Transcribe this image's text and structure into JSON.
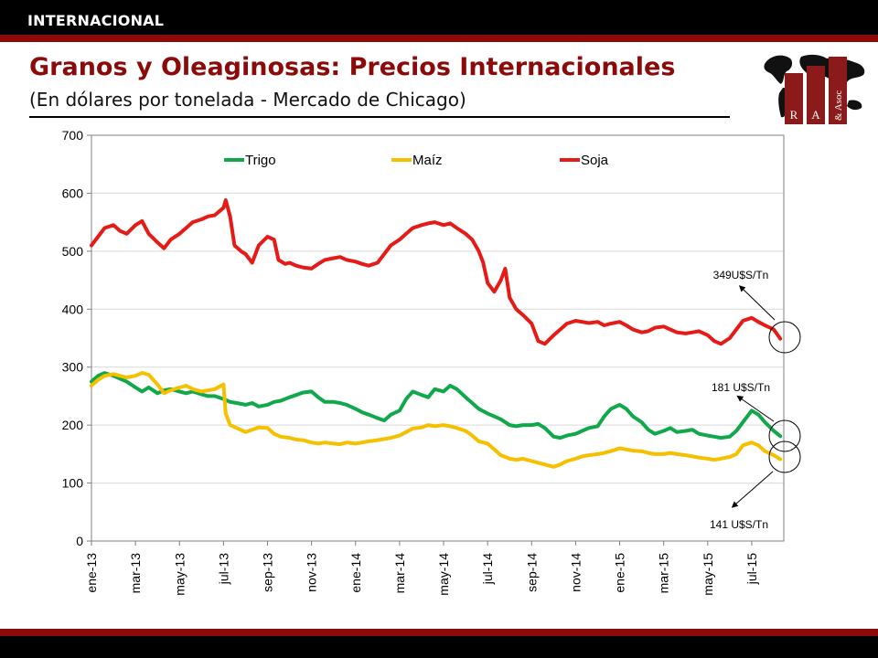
{
  "header": {
    "section_label": "INTERNACIONAL"
  },
  "page": {
    "title": "Granos y Oleaginosas: Precios Internacionales",
    "subtitle": "(En dólares por tonelada - Mercado de Chicago)"
  },
  "logo": {
    "letters": [
      "R",
      "A",
      "& Asoc"
    ],
    "colors": {
      "bar": "#8b1a1a",
      "map": "#111111"
    }
  },
  "colors": {
    "Trigo": "#11a84b",
    "Maíz": "#f5c000",
    "Soja": "#e41b17",
    "band": "#8b0b0b"
  },
  "chart_data": {
    "type": "line",
    "ylim": [
      0,
      700
    ],
    "yticks": [
      0,
      100,
      200,
      300,
      400,
      500,
      600,
      700
    ],
    "xlim": [
      0,
      31.3
    ],
    "x_unit": "months from ene-13",
    "xticks": [
      {
        "label": "ene-13",
        "x": 0
      },
      {
        "label": "mar-13",
        "x": 2
      },
      {
        "label": "may-13",
        "x": 4
      },
      {
        "label": "jul-13",
        "x": 6
      },
      {
        "label": "sep-13",
        "x": 8
      },
      {
        "label": "nov-13",
        "x": 10
      },
      {
        "label": "ene-14",
        "x": 12
      },
      {
        "label": "mar-14",
        "x": 14
      },
      {
        "label": "may-14",
        "x": 16
      },
      {
        "label": "jul-14",
        "x": 18
      },
      {
        "label": "sep-14",
        "x": 20
      },
      {
        "label": "nov-14",
        "x": 22
      },
      {
        "label": "ene-15",
        "x": 24
      },
      {
        "label": "mar-15",
        "x": 26
      },
      {
        "label": "may-15",
        "x": 28
      },
      {
        "label": "jul-15",
        "x": 30
      }
    ],
    "grid": "horizontal",
    "legend_position": "top",
    "series": [
      {
        "name": "Trigo",
        "points": [
          [
            0,
            275
          ],
          [
            0.3,
            285
          ],
          [
            0.6,
            290
          ],
          [
            1,
            285
          ],
          [
            1.3,
            280
          ],
          [
            1.6,
            275
          ],
          [
            2,
            265
          ],
          [
            2.3,
            258
          ],
          [
            2.6,
            265
          ],
          [
            3,
            255
          ],
          [
            3.3,
            260
          ],
          [
            3.6,
            262
          ],
          [
            4,
            258
          ],
          [
            4.3,
            255
          ],
          [
            4.6,
            258
          ],
          [
            5,
            253
          ],
          [
            5.3,
            250
          ],
          [
            5.6,
            250
          ],
          [
            6,
            245
          ],
          [
            6.3,
            240
          ],
          [
            6.6,
            238
          ],
          [
            7,
            235
          ],
          [
            7.3,
            238
          ],
          [
            7.6,
            232
          ],
          [
            8,
            235
          ],
          [
            8.3,
            240
          ],
          [
            8.6,
            242
          ],
          [
            9,
            248
          ],
          [
            9.3,
            252
          ],
          [
            9.6,
            256
          ],
          [
            10,
            258
          ],
          [
            10.3,
            248
          ],
          [
            10.6,
            240
          ],
          [
            11,
            240
          ],
          [
            11.3,
            238
          ],
          [
            11.6,
            235
          ],
          [
            12,
            228
          ],
          [
            12.3,
            222
          ],
          [
            12.6,
            218
          ],
          [
            13,
            212
          ],
          [
            13.3,
            208
          ],
          [
            13.6,
            218
          ],
          [
            14,
            225
          ],
          [
            14.3,
            245
          ],
          [
            14.6,
            258
          ],
          [
            15,
            252
          ],
          [
            15.3,
            248
          ],
          [
            15.6,
            262
          ],
          [
            16,
            258
          ],
          [
            16.3,
            268
          ],
          [
            16.6,
            262
          ],
          [
            17,
            248
          ],
          [
            17.3,
            238
          ],
          [
            17.6,
            228
          ],
          [
            18,
            220
          ],
          [
            18.3,
            215
          ],
          [
            18.6,
            210
          ],
          [
            19,
            200
          ],
          [
            19.3,
            198
          ],
          [
            19.6,
            200
          ],
          [
            20,
            200
          ],
          [
            20.3,
            202
          ],
          [
            20.6,
            195
          ],
          [
            21,
            180
          ],
          [
            21.3,
            178
          ],
          [
            21.6,
            182
          ],
          [
            22,
            185
          ],
          [
            22.3,
            190
          ],
          [
            22.6,
            195
          ],
          [
            23,
            198
          ],
          [
            23.3,
            215
          ],
          [
            23.6,
            228
          ],
          [
            24,
            235
          ],
          [
            24.3,
            228
          ],
          [
            24.6,
            215
          ],
          [
            25,
            205
          ],
          [
            25.3,
            192
          ],
          [
            25.6,
            185
          ],
          [
            26,
            190
          ],
          [
            26.3,
            195
          ],
          [
            26.6,
            188
          ],
          [
            27,
            190
          ],
          [
            27.3,
            192
          ],
          [
            27.6,
            185
          ],
          [
            28,
            182
          ],
          [
            28.3,
            180
          ],
          [
            28.6,
            178
          ],
          [
            29,
            180
          ],
          [
            29.3,
            190
          ],
          [
            29.6,
            205
          ],
          [
            30,
            225
          ],
          [
            30.3,
            218
          ],
          [
            30.6,
            205
          ],
          [
            31,
            190
          ],
          [
            31.3,
            181
          ]
        ]
      },
      {
        "name": "Maíz",
        "points": [
          [
            0,
            268
          ],
          [
            0.3,
            278
          ],
          [
            0.6,
            285
          ],
          [
            1,
            288
          ],
          [
            1.3,
            285
          ],
          [
            1.6,
            282
          ],
          [
            2,
            285
          ],
          [
            2.3,
            290
          ],
          [
            2.6,
            287
          ],
          [
            3,
            270
          ],
          [
            3.3,
            255
          ],
          [
            3.6,
            260
          ],
          [
            4,
            265
          ],
          [
            4.3,
            268
          ],
          [
            4.6,
            262
          ],
          [
            5,
            258
          ],
          [
            5.3,
            260
          ],
          [
            5.6,
            262
          ],
          [
            6,
            270
          ],
          [
            6.1,
            220
          ],
          [
            6.3,
            200
          ],
          [
            6.6,
            195
          ],
          [
            7,
            188
          ],
          [
            7.3,
            192
          ],
          [
            7.6,
            196
          ],
          [
            8,
            195
          ],
          [
            8.3,
            185
          ],
          [
            8.6,
            180
          ],
          [
            9,
            178
          ],
          [
            9.3,
            175
          ],
          [
            9.6,
            174
          ],
          [
            10,
            170
          ],
          [
            10.3,
            168
          ],
          [
            10.6,
            170
          ],
          [
            11,
            168
          ],
          [
            11.3,
            167
          ],
          [
            11.6,
            170
          ],
          [
            12,
            168
          ],
          [
            12.3,
            170
          ],
          [
            12.6,
            172
          ],
          [
            13,
            174
          ],
          [
            13.3,
            176
          ],
          [
            13.6,
            178
          ],
          [
            14,
            182
          ],
          [
            14.3,
            188
          ],
          [
            14.6,
            194
          ],
          [
            15,
            196
          ],
          [
            15.3,
            200
          ],
          [
            15.6,
            198
          ],
          [
            16,
            200
          ],
          [
            16.3,
            198
          ],
          [
            16.6,
            195
          ],
          [
            17,
            190
          ],
          [
            17.3,
            182
          ],
          [
            17.6,
            172
          ],
          [
            18,
            168
          ],
          [
            18.3,
            158
          ],
          [
            18.6,
            148
          ],
          [
            19,
            142
          ],
          [
            19.3,
            140
          ],
          [
            19.6,
            142
          ],
          [
            20,
            138
          ],
          [
            20.3,
            135
          ],
          [
            20.6,
            132
          ],
          [
            21,
            128
          ],
          [
            21.3,
            132
          ],
          [
            21.6,
            138
          ],
          [
            22,
            142
          ],
          [
            22.3,
            146
          ],
          [
            22.6,
            148
          ],
          [
            23,
            150
          ],
          [
            23.3,
            152
          ],
          [
            23.6,
            155
          ],
          [
            24,
            160
          ],
          [
            24.3,
            158
          ],
          [
            24.6,
            156
          ],
          [
            25,
            155
          ],
          [
            25.3,
            152
          ],
          [
            25.6,
            150
          ],
          [
            26,
            150
          ],
          [
            26.3,
            152
          ],
          [
            26.6,
            150
          ],
          [
            27,
            148
          ],
          [
            27.3,
            146
          ],
          [
            27.6,
            144
          ],
          [
            28,
            142
          ],
          [
            28.3,
            140
          ],
          [
            28.6,
            142
          ],
          [
            29,
            145
          ],
          [
            29.3,
            150
          ],
          [
            29.6,
            165
          ],
          [
            30,
            170
          ],
          [
            30.3,
            165
          ],
          [
            30.6,
            155
          ],
          [
            31,
            148
          ],
          [
            31.3,
            141
          ]
        ]
      },
      {
        "name": "Soja",
        "points": [
          [
            0,
            510
          ],
          [
            0.3,
            525
          ],
          [
            0.6,
            540
          ],
          [
            1,
            545
          ],
          [
            1.3,
            535
          ],
          [
            1.6,
            530
          ],
          [
            2,
            545
          ],
          [
            2.3,
            552
          ],
          [
            2.6,
            530
          ],
          [
            3,
            515
          ],
          [
            3.3,
            505
          ],
          [
            3.6,
            520
          ],
          [
            4,
            530
          ],
          [
            4.3,
            540
          ],
          [
            4.6,
            550
          ],
          [
            5,
            555
          ],
          [
            5.3,
            560
          ],
          [
            5.6,
            562
          ],
          [
            6,
            575
          ],
          [
            6.1,
            588
          ],
          [
            6.3,
            560
          ],
          [
            6.5,
            510
          ],
          [
            6.8,
            500
          ],
          [
            7,
            495
          ],
          [
            7.3,
            480
          ],
          [
            7.6,
            510
          ],
          [
            8,
            525
          ],
          [
            8.3,
            520
          ],
          [
            8.5,
            485
          ],
          [
            8.8,
            478
          ],
          [
            9,
            480
          ],
          [
            9.3,
            475
          ],
          [
            9.6,
            472
          ],
          [
            10,
            470
          ],
          [
            10.3,
            478
          ],
          [
            10.6,
            485
          ],
          [
            11,
            488
          ],
          [
            11.3,
            490
          ],
          [
            11.6,
            485
          ],
          [
            12,
            482
          ],
          [
            12.3,
            478
          ],
          [
            12.6,
            475
          ],
          [
            13,
            480
          ],
          [
            13.3,
            495
          ],
          [
            13.6,
            510
          ],
          [
            14,
            520
          ],
          [
            14.3,
            530
          ],
          [
            14.6,
            540
          ],
          [
            15,
            545
          ],
          [
            15.3,
            548
          ],
          [
            15.6,
            550
          ],
          [
            16,
            545
          ],
          [
            16.3,
            548
          ],
          [
            16.6,
            540
          ],
          [
            17,
            530
          ],
          [
            17.3,
            520
          ],
          [
            17.6,
            500
          ],
          [
            17.8,
            480
          ],
          [
            18,
            445
          ],
          [
            18.3,
            430
          ],
          [
            18.6,
            450
          ],
          [
            18.8,
            470
          ],
          [
            19,
            420
          ],
          [
            19.3,
            400
          ],
          [
            19.6,
            390
          ],
          [
            20,
            375
          ],
          [
            20.3,
            345
          ],
          [
            20.6,
            340
          ],
          [
            21,
            355
          ],
          [
            21.3,
            365
          ],
          [
            21.6,
            375
          ],
          [
            22,
            380
          ],
          [
            22.3,
            378
          ],
          [
            22.6,
            376
          ],
          [
            23,
            378
          ],
          [
            23.3,
            372
          ],
          [
            23.6,
            375
          ],
          [
            24,
            378
          ],
          [
            24.3,
            372
          ],
          [
            24.6,
            365
          ],
          [
            25,
            360
          ],
          [
            25.3,
            362
          ],
          [
            25.6,
            368
          ],
          [
            26,
            370
          ],
          [
            26.3,
            365
          ],
          [
            26.6,
            360
          ],
          [
            27,
            358
          ],
          [
            27.3,
            360
          ],
          [
            27.6,
            362
          ],
          [
            28,
            355
          ],
          [
            28.3,
            345
          ],
          [
            28.6,
            340
          ],
          [
            29,
            350
          ],
          [
            29.3,
            365
          ],
          [
            29.6,
            380
          ],
          [
            30,
            385
          ],
          [
            30.3,
            378
          ],
          [
            30.6,
            372
          ],
          [
            31,
            365
          ],
          [
            31.3,
            349
          ]
        ]
      }
    ],
    "annotations": [
      {
        "text": "349U$S/Tn",
        "series": "Soja",
        "value": 349
      },
      {
        "text": "181 U$S/Tn",
        "series": "Trigo",
        "value": 181
      },
      {
        "text": "141 U$S/Tn",
        "series": "Maíz",
        "value": 141
      }
    ]
  }
}
